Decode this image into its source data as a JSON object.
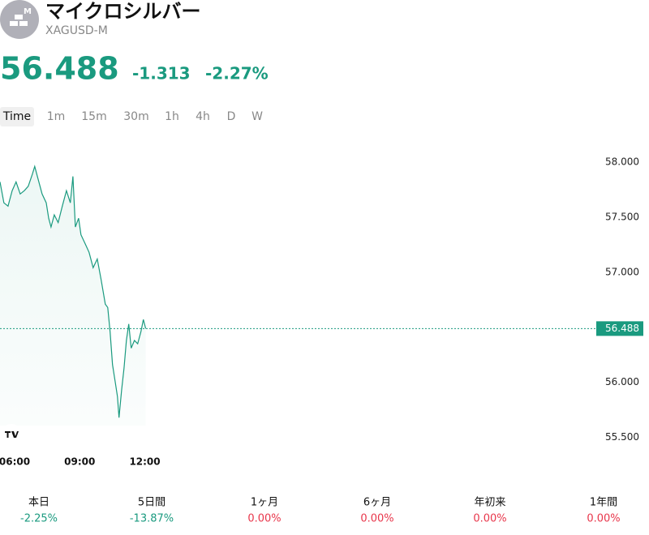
{
  "header": {
    "title": "マイクロシルバー",
    "symbol": "XAGUSD-M",
    "icon_badge": "M",
    "change": "-1.313",
    "change_percent": "-2.27%"
  },
  "tabs": [
    "Time",
    "1m",
    "15m",
    "30m",
    "1h",
    "4h",
    "D",
    "W"
  ],
  "chart_data": {
    "type": "line",
    "x": [
      5.33,
      5.51,
      5.7,
      5.89,
      6.07,
      6.26,
      6.45,
      6.63,
      6.82,
      6.93,
      7.08,
      7.27,
      7.46,
      7.57,
      7.68,
      7.83,
      8.01,
      8.2,
      8.39,
      8.57,
      8.69,
      8.8,
      8.95,
      9.06,
      9.25,
      9.43,
      9.62,
      9.81,
      9.99,
      10.18,
      10.29,
      10.4,
      10.51,
      10.63,
      10.74,
      10.81,
      10.93,
      11.04,
      11.15,
      11.26,
      11.37,
      11.52,
      11.67,
      11.82,
      11.93,
      12.04
    ],
    "series": [
      {
        "color": "#1a9a7f",
        "values": [
          57.82,
          57.63,
          57.6,
          57.74,
          57.82,
          57.71,
          57.74,
          57.78,
          57.89,
          57.96,
          57.85,
          57.71,
          57.63,
          57.49,
          57.41,
          57.52,
          57.45,
          57.6,
          57.74,
          57.63,
          57.87,
          57.41,
          57.49,
          57.34,
          57.26,
          57.18,
          57.04,
          57.12,
          56.93,
          56.71,
          56.68,
          56.46,
          56.16,
          56.01,
          55.87,
          55.68,
          55.93,
          56.13,
          56.38,
          56.53,
          56.31,
          56.38,
          56.35,
          56.46,
          56.57,
          56.488
        ]
      }
    ],
    "price_line": 56.488,
    "xlim": [
      5.33,
      32.6
    ],
    "ylim": [
      55.35,
      58.22
    ],
    "xticks": [
      {
        "value": 6,
        "label": "06:00"
      },
      {
        "value": 9,
        "label": "09:00"
      },
      {
        "value": 12,
        "label": "12:00"
      }
    ],
    "yticks": [
      {
        "value": 55.5,
        "label": "55.500"
      },
      {
        "value": 56,
        "label": "56.000"
      },
      {
        "value": 57,
        "label": "57.000"
      },
      {
        "value": 57.5,
        "label": "57.500"
      },
      {
        "value": 58,
        "label": "58.000"
      }
    ]
  },
  "performance": [
    {
      "label": "本日",
      "value": "-2.25%",
      "color": "#1a9a7f"
    },
    {
      "label": "5日間",
      "value": "-13.87%",
      "color": "#1a9a7f"
    },
    {
      "label": "1ヶ月",
      "value": "0.00%",
      "color": "#e8364b"
    },
    {
      "label": "6ヶ月",
      "value": "0.00%",
      "color": "#e8364b"
    },
    {
      "label": "年初来",
      "value": "0.00%",
      "color": "#e8364b"
    },
    {
      "label": "1年間",
      "value": "0.00%",
      "color": "#e8364b"
    }
  ]
}
